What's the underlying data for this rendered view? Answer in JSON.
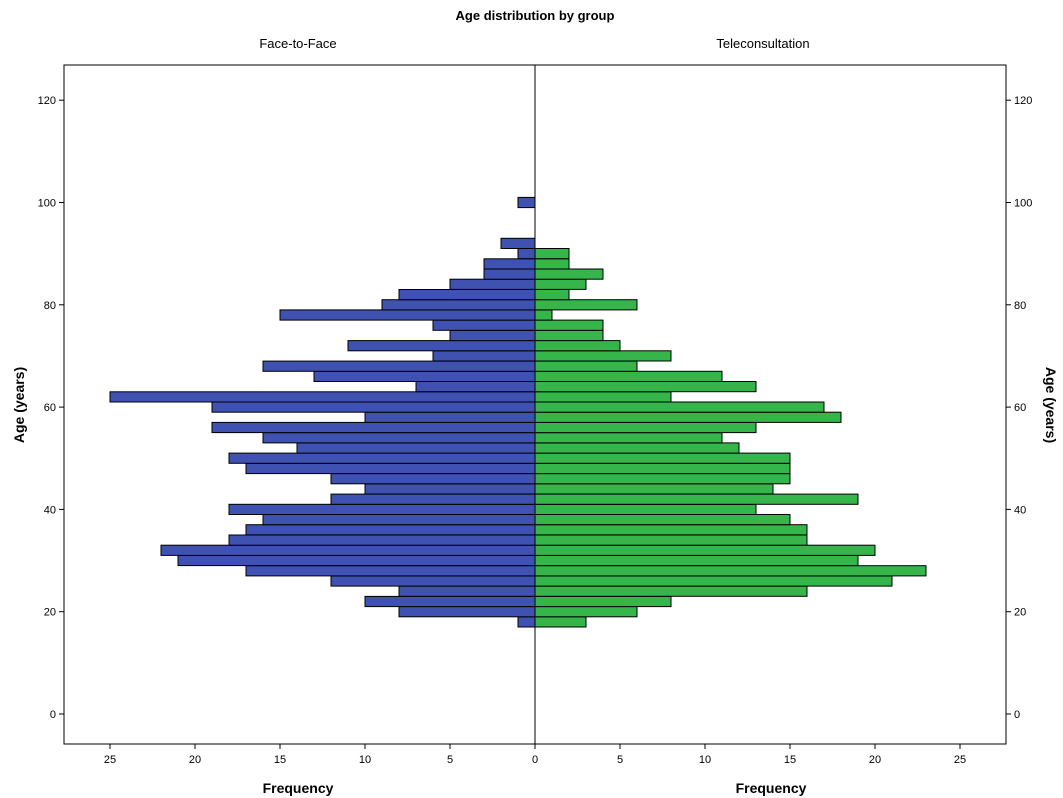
{
  "chart_data": {
    "type": "bar",
    "orientation": "horizontal-population-pyramid",
    "title": "Age distribution by group",
    "panels": [
      "Face-to-Face",
      "Teleconsultation"
    ],
    "xlabel": "Frequency",
    "ylabel": "Age (years)",
    "ylim": [
      -6,
      127
    ],
    "xlim": [
      -28,
      28
    ],
    "yticks": [
      0,
      20,
      40,
      60,
      80,
      100,
      120
    ],
    "xticks": [
      -25,
      -20,
      -15,
      -10,
      -5,
      0,
      5,
      10,
      15,
      20,
      25
    ],
    "bin_width": 2,
    "series": [
      {
        "name": "Face-to-Face",
        "color": "#3f51b1",
        "bins": [
          {
            "age": 18,
            "value": 1
          },
          {
            "age": 20,
            "value": 8
          },
          {
            "age": 22,
            "value": 10
          },
          {
            "age": 24,
            "value": 8
          },
          {
            "age": 26,
            "value": 12
          },
          {
            "age": 28,
            "value": 17
          },
          {
            "age": 30,
            "value": 21
          },
          {
            "age": 32,
            "value": 22
          },
          {
            "age": 34,
            "value": 18
          },
          {
            "age": 36,
            "value": 17
          },
          {
            "age": 38,
            "value": 16
          },
          {
            "age": 40,
            "value": 18
          },
          {
            "age": 42,
            "value": 12
          },
          {
            "age": 44,
            "value": 10
          },
          {
            "age": 46,
            "value": 12
          },
          {
            "age": 48,
            "value": 17
          },
          {
            "age": 50,
            "value": 18
          },
          {
            "age": 52,
            "value": 14
          },
          {
            "age": 54,
            "value": 16
          },
          {
            "age": 56,
            "value": 19
          },
          {
            "age": 58,
            "value": 10
          },
          {
            "age": 60,
            "value": 19
          },
          {
            "age": 62,
            "value": 25
          },
          {
            "age": 64,
            "value": 7
          },
          {
            "age": 66,
            "value": 13
          },
          {
            "age": 68,
            "value": 16
          },
          {
            "age": 70,
            "value": 6
          },
          {
            "age": 72,
            "value": 11
          },
          {
            "age": 74,
            "value": 5
          },
          {
            "age": 76,
            "value": 6
          },
          {
            "age": 78,
            "value": 15
          },
          {
            "age": 80,
            "value": 9
          },
          {
            "age": 82,
            "value": 8
          },
          {
            "age": 84,
            "value": 5
          },
          {
            "age": 86,
            "value": 3
          },
          {
            "age": 88,
            "value": 3
          },
          {
            "age": 90,
            "value": 1
          },
          {
            "age": 92,
            "value": 2
          },
          {
            "age": 100,
            "value": 1
          }
        ]
      },
      {
        "name": "Teleconsultation",
        "color": "#35b54a",
        "bins": [
          {
            "age": 18,
            "value": 3
          },
          {
            "age": 20,
            "value": 6
          },
          {
            "age": 22,
            "value": 8
          },
          {
            "age": 24,
            "value": 16
          },
          {
            "age": 26,
            "value": 21
          },
          {
            "age": 28,
            "value": 23
          },
          {
            "age": 30,
            "value": 19
          },
          {
            "age": 32,
            "value": 20
          },
          {
            "age": 34,
            "value": 16
          },
          {
            "age": 36,
            "value": 16
          },
          {
            "age": 38,
            "value": 15
          },
          {
            "age": 40,
            "value": 13
          },
          {
            "age": 42,
            "value": 19
          },
          {
            "age": 44,
            "value": 14
          },
          {
            "age": 46,
            "value": 15
          },
          {
            "age": 48,
            "value": 15
          },
          {
            "age": 50,
            "value": 15
          },
          {
            "age": 52,
            "value": 12
          },
          {
            "age": 54,
            "value": 11
          },
          {
            "age": 56,
            "value": 13
          },
          {
            "age": 58,
            "value": 18
          },
          {
            "age": 60,
            "value": 17
          },
          {
            "age": 62,
            "value": 8
          },
          {
            "age": 64,
            "value": 13
          },
          {
            "age": 66,
            "value": 11
          },
          {
            "age": 68,
            "value": 6
          },
          {
            "age": 70,
            "value": 8
          },
          {
            "age": 72,
            "value": 5
          },
          {
            "age": 74,
            "value": 4
          },
          {
            "age": 76,
            "value": 4
          },
          {
            "age": 78,
            "value": 1
          },
          {
            "age": 80,
            "value": 6
          },
          {
            "age": 82,
            "value": 2
          },
          {
            "age": 84,
            "value": 3
          },
          {
            "age": 86,
            "value": 4
          },
          {
            "age": 88,
            "value": 2
          },
          {
            "age": 90,
            "value": 2
          }
        ]
      }
    ]
  }
}
